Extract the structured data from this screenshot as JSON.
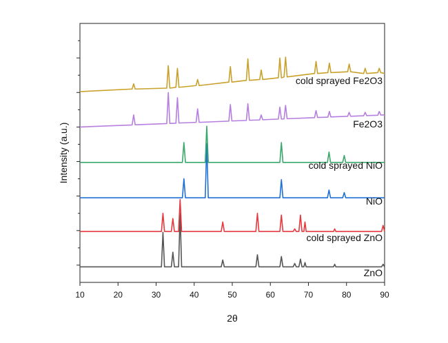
{
  "chart_data": {
    "type": "line",
    "xlabel": "2θ",
    "ylabel": "Intensity (a.u.)",
    "xlim": [
      10,
      90
    ],
    "xticks": [
      10,
      20,
      30,
      40,
      50,
      60,
      70,
      80,
      90
    ],
    "ylim": [
      0,
      15
    ],
    "yticks": [
      1,
      2,
      3,
      4,
      5,
      6,
      7,
      8,
      9,
      10,
      11,
      12,
      13,
      14
    ],
    "series": [
      {
        "name": "ZnO",
        "color": "#555555",
        "x": [
          10,
          22,
          31.4,
          31.8,
          32.2,
          34.0,
          34.4,
          34.8,
          35.9,
          36.3,
          36.7,
          47.1,
          47.5,
          47.9,
          56.2,
          56.6,
          57.0,
          62.5,
          62.9,
          63.3,
          66.0,
          66.4,
          66.8,
          67.5,
          67.9,
          68.3,
          68.8,
          69.1,
          69.4,
          76.6,
          76.9,
          77.2,
          89.2,
          89.6,
          90
        ],
        "values": [
          0.9,
          0.9,
          0.9,
          2.9,
          0.9,
          0.9,
          1.75,
          0.9,
          0.9,
          4.0,
          0.9,
          0.9,
          1.3,
          0.9,
          0.9,
          1.6,
          0.9,
          0.9,
          1.5,
          0.9,
          0.9,
          1.1,
          0.9,
          0.9,
          1.35,
          0.9,
          0.9,
          1.15,
          0.9,
          0.9,
          1.05,
          0.9,
          0.9,
          1.05,
          0.9
        ]
      },
      {
        "name": "cold sprayed ZnO",
        "color": "#e8383d",
        "x": [
          10,
          22,
          31.4,
          31.8,
          32.2,
          34.0,
          34.4,
          34.8,
          35.9,
          36.3,
          36.7,
          47.1,
          47.5,
          47.9,
          56.2,
          56.6,
          57.0,
          62.5,
          62.9,
          63.3,
          66.0,
          66.4,
          66.8,
          67.5,
          67.9,
          68.3,
          68.8,
          69.1,
          69.4,
          76.6,
          76.9,
          77.2,
          89.2,
          89.6,
          90
        ],
        "values": [
          2.95,
          2.95,
          2.95,
          4.0,
          2.95,
          2.95,
          3.7,
          2.95,
          2.95,
          4.8,
          2.95,
          2.95,
          3.5,
          2.95,
          2.95,
          4.0,
          2.95,
          2.95,
          3.9,
          2.95,
          2.95,
          3.1,
          2.95,
          2.95,
          3.9,
          2.95,
          2.95,
          3.5,
          2.95,
          2.95,
          3.1,
          2.95,
          2.95,
          3.3,
          2.95
        ]
      },
      {
        "name": "NiO",
        "color": "#1f6fd6",
        "x": [
          10,
          36.9,
          37.3,
          37.7,
          42.9,
          43.3,
          43.7,
          62.5,
          62.9,
          63.3,
          75.0,
          75.4,
          75.8,
          79.0,
          79.4,
          79.8,
          90
        ],
        "values": [
          4.9,
          4.9,
          6.0,
          4.9,
          4.9,
          8.05,
          4.9,
          4.9,
          5.95,
          4.9,
          4.9,
          5.35,
          4.9,
          4.9,
          5.2,
          4.9,
          4.9
        ]
      },
      {
        "name": "cold sprayed NiO",
        "color": "#3aa86a",
        "x": [
          10,
          36.9,
          37.3,
          37.7,
          42.9,
          43.3,
          43.7,
          62.5,
          62.9,
          63.3,
          75.0,
          75.4,
          75.8,
          79.0,
          79.4,
          79.8,
          90
        ],
        "values": [
          6.95,
          6.95,
          8.1,
          6.95,
          6.95,
          9.05,
          6.95,
          6.95,
          8.1,
          6.95,
          6.95,
          7.55,
          6.95,
          6.95,
          7.35,
          6.95,
          6.95
        ]
      },
      {
        "name": "Fe2O3",
        "color": "#b57ee0",
        "x": [
          10,
          23.7,
          24.1,
          24.5,
          32.8,
          33.2,
          33.6,
          35.2,
          35.6,
          36.0,
          40.5,
          40.9,
          41.3,
          49.1,
          49.5,
          49.9,
          53.7,
          54.1,
          54.5,
          57.2,
          57.6,
          58.0,
          62.1,
          62.5,
          62.9,
          63.6,
          64.0,
          64.4,
          71.6,
          72.0,
          72.4,
          75.1,
          75.5,
          75.9,
          80.3,
          80.7,
          81.1,
          84.5,
          84.9,
          85.3,
          88.2,
          88.6,
          89.0,
          90
        ],
        "values": [
          9.0,
          9.12,
          9.7,
          9.13,
          9.2,
          11.0,
          9.21,
          9.22,
          10.7,
          9.23,
          9.27,
          10.05,
          9.27,
          9.34,
          10.3,
          9.35,
          9.38,
          10.35,
          9.39,
          9.41,
          9.7,
          9.42,
          9.46,
          10.15,
          9.46,
          9.47,
          10.25,
          9.48,
          9.54,
          9.95,
          9.55,
          9.57,
          9.9,
          9.58,
          9.62,
          9.85,
          9.62,
          9.65,
          9.85,
          9.66,
          9.68,
          9.9,
          9.69,
          9.7
        ]
      },
      {
        "name": "cold sprayed Fe2O3",
        "color": "#c9a02a",
        "x": [
          10,
          23.7,
          24.1,
          24.5,
          32.8,
          33.2,
          33.6,
          35.2,
          35.6,
          36.0,
          40.5,
          40.9,
          41.3,
          49.1,
          49.5,
          49.9,
          53.7,
          54.1,
          54.5,
          57.2,
          57.6,
          58.0,
          62.1,
          62.5,
          62.9,
          63.6,
          64.0,
          64.4,
          71.6,
          72.0,
          72.4,
          75.1,
          75.5,
          75.9,
          80.3,
          80.7,
          81.1,
          84.5,
          84.9,
          85.3,
          88.2,
          88.6,
          89.0,
          90
        ],
        "values": [
          11.05,
          11.2,
          11.5,
          11.2,
          11.25,
          12.55,
          11.25,
          11.3,
          12.4,
          11.3,
          11.4,
          11.75,
          11.4,
          11.6,
          12.5,
          11.6,
          11.7,
          12.95,
          11.7,
          11.75,
          12.3,
          11.75,
          11.85,
          13.0,
          11.85,
          11.9,
          13.05,
          11.9,
          12.1,
          12.8,
          12.1,
          12.15,
          12.7,
          12.15,
          12.2,
          12.65,
          12.2,
          12.1,
          12.4,
          12.1,
          12.15,
          12.4,
          12.15,
          12.1
        ]
      }
    ]
  }
}
